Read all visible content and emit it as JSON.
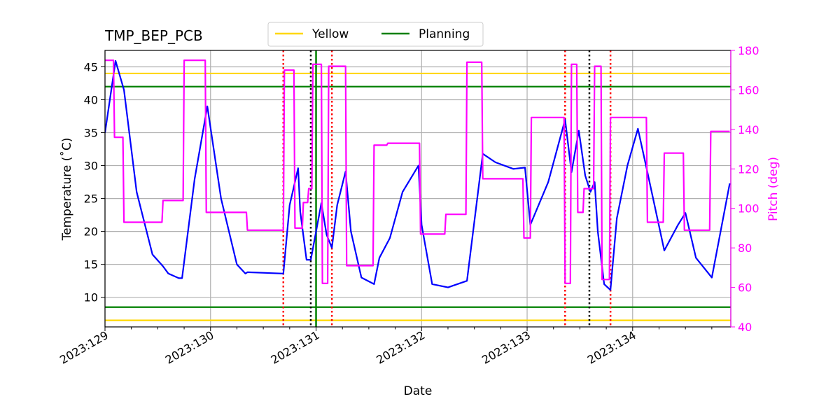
{
  "chart_data": {
    "type": "line",
    "title": "TMP_BEP_PCB",
    "xlabel": "Date",
    "ylabel_left": "Temperature ($^\\circ$C)",
    "ylabel_left_display": "Temperature (˚C)",
    "ylabel_right": "Pitch (deg)",
    "xlim": [
      129.0,
      134.93
    ],
    "ylim_left": [
      5.5,
      47.5
    ],
    "ylim_right": [
      40,
      180
    ],
    "grid": true,
    "legend_placement": "top-center",
    "x_major_ticks": [
      129,
      130,
      131,
      132,
      133,
      134
    ],
    "x_tick_labels": [
      "2023:129",
      "2023:130",
      "2023:131",
      "2023:132",
      "2023:133",
      "2023:134"
    ],
    "y_left_ticks": [
      10,
      15,
      20,
      25,
      30,
      35,
      40,
      45
    ],
    "y_right_ticks": [
      40,
      60,
      80,
      100,
      120,
      140,
      160,
      180
    ],
    "legend": [
      {
        "label": "Yellow",
        "color": "#ffd700"
      },
      {
        "label": "Planning",
        "color": "#008000"
      }
    ],
    "limit_lines": [
      {
        "name": "yellow_high",
        "value": 44.0,
        "color": "#ffd700"
      },
      {
        "name": "yellow_low",
        "value": 6.5,
        "color": "#ffd700"
      },
      {
        "name": "planning_high",
        "value": 42.0,
        "color": "#008000"
      },
      {
        "name": "planning_low",
        "value": 8.5,
        "color": "#008000"
      }
    ],
    "vertical_lines": [
      {
        "x": 130.69,
        "color": "#ff0000",
        "style": "dotted"
      },
      {
        "x": 130.95,
        "color": "#000000",
        "style": "dotted"
      },
      {
        "x": 131.0,
        "color": "#008000",
        "style": "solid"
      },
      {
        "x": 131.15,
        "color": "#ff0000",
        "style": "dotted"
      },
      {
        "x": 133.36,
        "color": "#ff0000",
        "style": "dotted"
      },
      {
        "x": 133.59,
        "color": "#000000",
        "style": "dotted"
      },
      {
        "x": 133.79,
        "color": "#ff0000",
        "style": "dotted"
      }
    ],
    "series": [
      {
        "axis": "left",
        "color": "#0000ff",
        "x": [
          129.0,
          129.1,
          129.18,
          129.3,
          129.45,
          129.55,
          129.6,
          129.7,
          129.73,
          129.85,
          129.97,
          130.1,
          130.25,
          130.33,
          130.35,
          130.69,
          130.75,
          130.83,
          130.85,
          130.91,
          130.95,
          131.05,
          131.1,
          131.15,
          131.2,
          131.28,
          131.33,
          131.43,
          131.55,
          131.6,
          131.7,
          131.82,
          131.97,
          132.0,
          132.1,
          132.25,
          132.43,
          132.58,
          132.7,
          132.87,
          132.98,
          133.03,
          133.2,
          133.36,
          133.42,
          133.49,
          133.55,
          133.6,
          133.64,
          133.67,
          133.73,
          133.79,
          133.85,
          133.95,
          134.05,
          134.14,
          134.3,
          134.43,
          134.5,
          134.6,
          134.75,
          134.92
        ],
        "y": [
          35.0,
          45.9,
          41.5,
          26.0,
          16.5,
          14.7,
          13.6,
          12.9,
          12.9,
          28.0,
          39.0,
          25.0,
          15.0,
          13.6,
          13.8,
          13.6,
          24.0,
          29.6,
          23.0,
          15.7,
          15.7,
          24.3,
          19.5,
          17.5,
          24.0,
          29.1,
          20.0,
          13.0,
          12.0,
          16.0,
          19.0,
          26.0,
          30.0,
          21.0,
          12.0,
          11.5,
          12.5,
          31.8,
          30.5,
          29.5,
          29.7,
          21.0,
          27.5,
          37.0,
          29.0,
          35.3,
          28.5,
          26.0,
          27.5,
          20.0,
          12.0,
          11.1,
          22.0,
          30.0,
          35.6,
          29.0,
          17.1,
          21.0,
          22.8,
          16.0,
          13.0,
          27.3
        ]
      },
      {
        "axis": "right",
        "color": "#ff00ff",
        "x": [
          129.0,
          129.08,
          129.09,
          129.17,
          129.18,
          129.54,
          129.55,
          129.74,
          129.75,
          129.95,
          129.96,
          130.34,
          130.35,
          130.69,
          130.7,
          130.79,
          130.8,
          130.87,
          130.88,
          130.92,
          130.93,
          130.96,
          130.97,
          131.05,
          131.06,
          131.11,
          131.12,
          131.28,
          131.29,
          131.54,
          131.55,
          131.67,
          131.68,
          131.98,
          131.99,
          132.22,
          132.23,
          132.42,
          132.43,
          132.57,
          132.58,
          132.96,
          132.97,
          133.03,
          133.04,
          133.35,
          133.36,
          133.41,
          133.42,
          133.47,
          133.48,
          133.53,
          133.54,
          133.63,
          133.64,
          133.7,
          133.71,
          133.78,
          133.79,
          134.13,
          134.14,
          134.29,
          134.3,
          134.48,
          134.49,
          134.73,
          134.74,
          134.92
        ],
        "y": [
          175,
          175,
          136,
          136,
          93,
          93,
          104,
          104,
          175,
          175,
          98,
          98,
          89,
          89,
          170,
          170,
          90,
          90,
          103,
          103,
          110,
          110,
          173,
          173,
          62,
          62,
          172,
          172,
          71,
          71,
          132,
          132,
          133,
          133,
          87,
          87,
          97,
          97,
          174,
          174,
          115,
          115,
          85,
          85,
          146,
          146,
          62,
          62,
          173,
          173,
          98,
          98,
          110,
          110,
          172,
          172,
          64,
          64,
          146,
          146,
          93,
          93,
          128,
          128,
          89,
          89,
          139,
          139
        ]
      }
    ]
  }
}
